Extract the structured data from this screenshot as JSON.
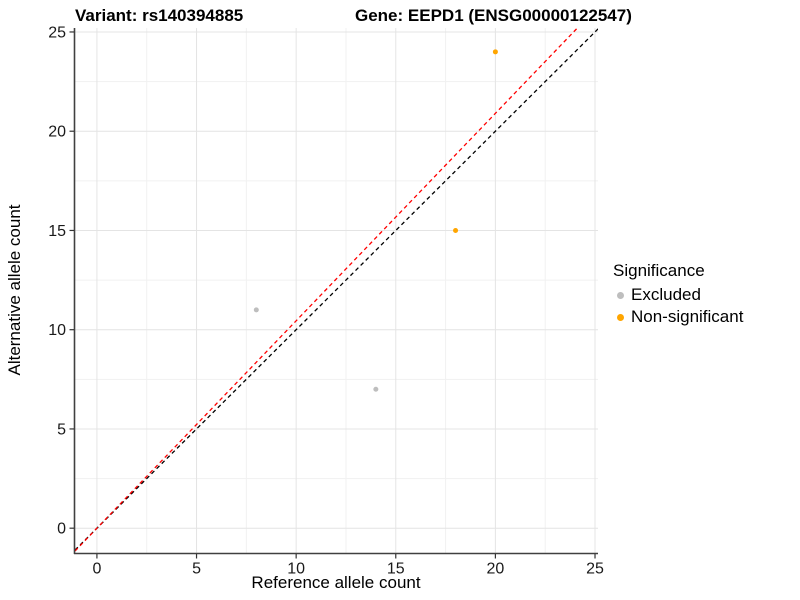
{
  "chart_data": {
    "type": "scatter",
    "title_left": "Variant: rs140394885",
    "title_right": "Gene: EEPD1 (ENSG00000122547)",
    "xlabel": "Reference allele count",
    "ylabel": "Alternative allele count",
    "xlim": [
      -1.1,
      25.15
    ],
    "ylim": [
      -1.25,
      25.2
    ],
    "x_ticks": [
      0,
      5,
      10,
      15,
      20,
      25
    ],
    "y_ticks": [
      0,
      5,
      10,
      15,
      20,
      25
    ],
    "x_minor_ticks": [
      2.5,
      7.5,
      12.5,
      17.5,
      22.5
    ],
    "y_minor_ticks": [
      2.5,
      7.5,
      12.5,
      17.5,
      22.5
    ],
    "grid": "major+minor",
    "legend": {
      "title": "Significance",
      "position": "right"
    },
    "series": [
      {
        "name": "Excluded",
        "color": "#BEBEBE",
        "points": [
          [
            8,
            11
          ],
          [
            14,
            7
          ]
        ]
      },
      {
        "name": "Non-significant",
        "color": "#FFA500",
        "points": [
          [
            18,
            15
          ],
          [
            20,
            24
          ]
        ]
      }
    ],
    "lines": [
      {
        "name": "identity-line",
        "color": "#000000",
        "slope": 1.0,
        "intercept": 0,
        "style": "dashed"
      },
      {
        "name": "expected-ratio-line",
        "color": "#FF0000",
        "slope": 1.045,
        "intercept": 0,
        "style": "dashed"
      }
    ]
  }
}
